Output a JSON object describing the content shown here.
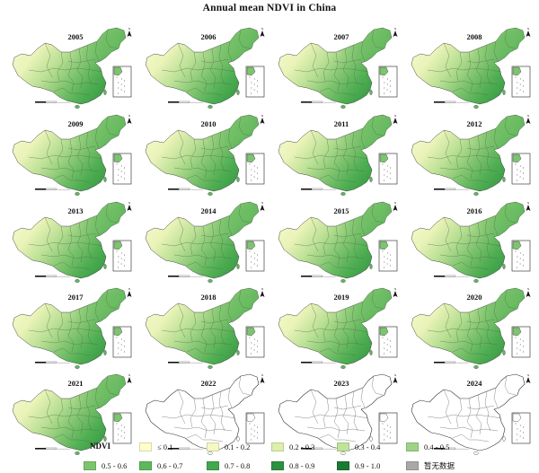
{
  "title": "Annual mean NDVI in China",
  "years": [
    {
      "label": "2005",
      "has_data": true
    },
    {
      "label": "2006",
      "has_data": true
    },
    {
      "label": "2007",
      "has_data": true
    },
    {
      "label": "2008",
      "has_data": true
    },
    {
      "label": "2009",
      "has_data": true
    },
    {
      "label": "2010",
      "has_data": true
    },
    {
      "label": "2011",
      "has_data": true
    },
    {
      "label": "2012",
      "has_data": true
    },
    {
      "label": "2013",
      "has_data": true
    },
    {
      "label": "2014",
      "has_data": true
    },
    {
      "label": "2015",
      "has_data": true
    },
    {
      "label": "2016",
      "has_data": true
    },
    {
      "label": "2017",
      "has_data": true
    },
    {
      "label": "2018",
      "has_data": true
    },
    {
      "label": "2019",
      "has_data": true
    },
    {
      "label": "2020",
      "has_data": true
    },
    {
      "label": "2021",
      "has_data": true
    },
    {
      "label": "2022",
      "has_data": false
    },
    {
      "label": "2023",
      "has_data": false
    },
    {
      "label": "2024",
      "has_data": false
    }
  ],
  "legend": {
    "title": "NDVI",
    "items": [
      {
        "label": "≤ 0.1",
        "color": "#ffffcc"
      },
      {
        "label": "0.1 - 0.2",
        "color": "#f4f8c2"
      },
      {
        "label": "0.2 - 0.3",
        "color": "#dcefac"
      },
      {
        "label": "0.3 - 0.4",
        "color": "#bfe399"
      },
      {
        "label": "0.4 - 0.5",
        "color": "#9dd386"
      },
      {
        "label": "0.5 - 0.6",
        "color": "#7cc56f"
      },
      {
        "label": "0.6 - 0.7",
        "color": "#5db85c"
      },
      {
        "label": "0.7 - 0.8",
        "color": "#43a74b"
      },
      {
        "label": "0.8 - 0.9",
        "color": "#2c9140"
      },
      {
        "label": "0.9 - 1.0",
        "color": "#197a33"
      },
      {
        "label": "暂无数据",
        "color": "#a8a8a8"
      }
    ]
  }
}
